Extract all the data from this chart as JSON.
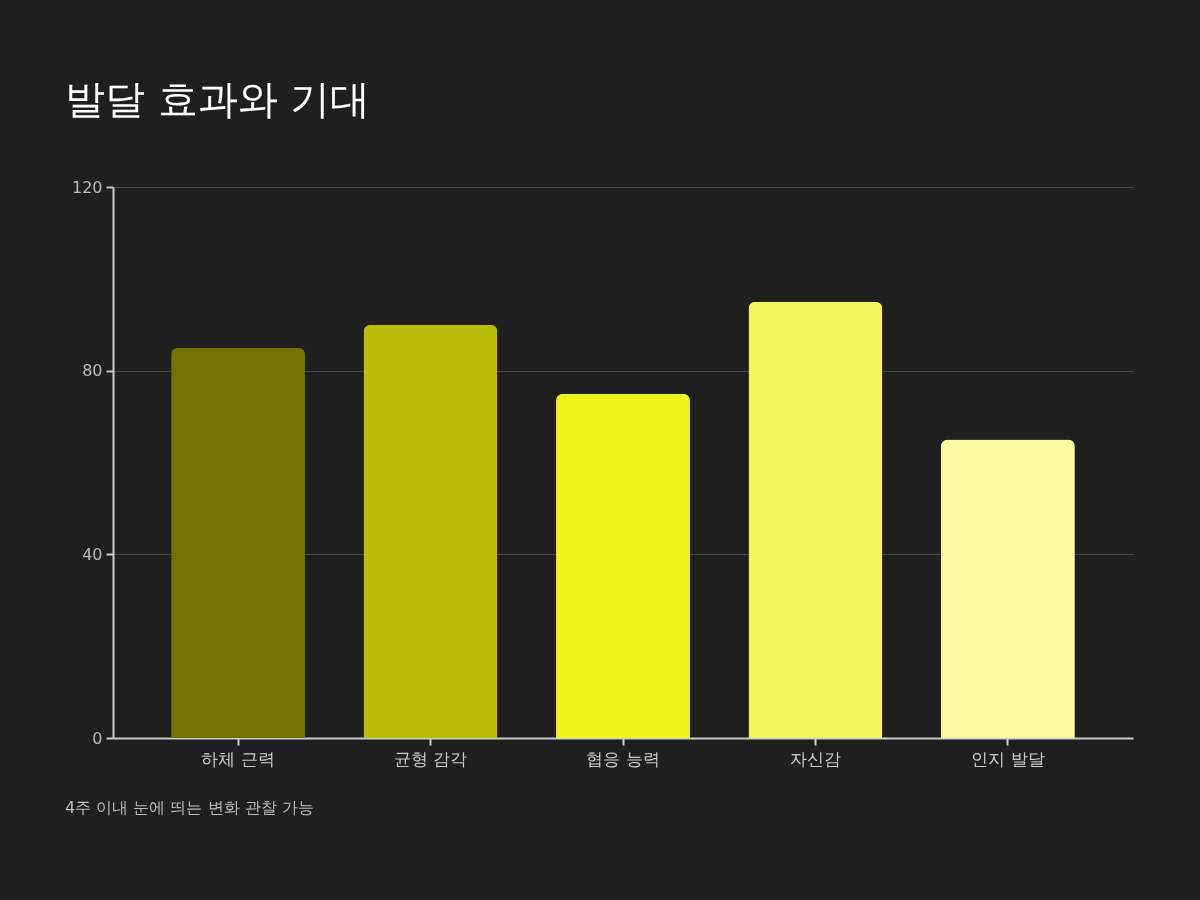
{
  "chart_data": {
    "type": "bar",
    "title": "발달 효과와 기대",
    "categories": [
      "하체 근력",
      "균형 감각",
      "협응 능력",
      "자신감",
      "인지 발달"
    ],
    "values": [
      85,
      90,
      75,
      95,
      65
    ],
    "colors": [
      "#737305",
      "#bbbb0a",
      "#f2f21c",
      "#f5f562",
      "#fafaa0"
    ],
    "ylim": [
      0,
      120
    ],
    "yticks": [
      0,
      40,
      80,
      120
    ],
    "grid": "y",
    "annotations": [
      "4주 이내 눈에 띄는 변화 관찰 가능"
    ]
  }
}
